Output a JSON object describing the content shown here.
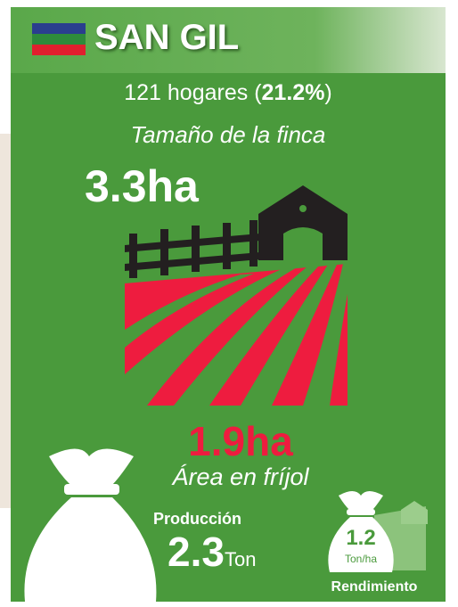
{
  "header": {
    "title": "SAN GIL"
  },
  "households": {
    "prefix": "121 hogares (",
    "percent": "21.2%",
    "suffix": ")"
  },
  "farm_size": {
    "label": "Tamaño de la finca",
    "value": "3.3ha"
  },
  "bean_area": {
    "value": "1.9ha",
    "label": "Área en fríjol"
  },
  "production": {
    "label": "Producción",
    "value": "2.3",
    "unit": "Ton"
  },
  "yield": {
    "value": "1.2",
    "unit": "Ton/ha",
    "label": "Rendimiento"
  }
}
